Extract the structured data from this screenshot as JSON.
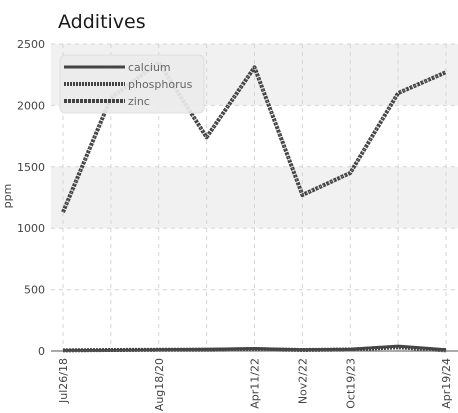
{
  "chart_data": {
    "type": "line",
    "title": "Additives",
    "ylabel": "ppm",
    "xlabel": "",
    "ylim": [
      0,
      2500
    ],
    "yticks": [
      0,
      500,
      1000,
      1500,
      2000,
      2500
    ],
    "grid": true,
    "legend_position": "top-left",
    "x": [
      "Jul26/18",
      "Feb18/19",
      "Aug18/20",
      "Jun15/21",
      "Apr11/22",
      "Nov02/22",
      "Oct19/23",
      "Jan10/24",
      "Apr19/24"
    ],
    "x_tick_labels": [
      "Jul26/18",
      "Aug18/20",
      "Apr11/22",
      "Nov2/22",
      "Oct19/23",
      "Apr19/24"
    ],
    "series": [
      {
        "name": "calcium",
        "values": [
          5,
          5,
          10,
          15,
          20,
          10,
          15,
          40,
          10
        ]
      },
      {
        "name": "phosphorus",
        "values": [
          5,
          8,
          10,
          10,
          15,
          8,
          12,
          30,
          5
        ]
      },
      {
        "name": "zinc",
        "values": [
          1130,
          2060,
          2350,
          1740,
          2310,
          1270,
          1450,
          2100,
          2270
        ]
      }
    ],
    "colors": {
      "line": "#444444",
      "grid": "#d5d5d5",
      "band": "#f1f1f1",
      "legend_bg": "#ececec"
    }
  }
}
